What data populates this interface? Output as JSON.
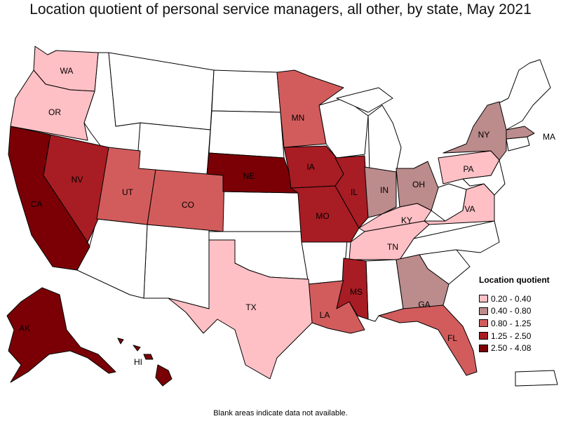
{
  "title": "Location quotient of personal service managers, all other, by state, May 2021",
  "footnote": "Blank areas indicate data not available.",
  "legend": {
    "title": "Location quotient",
    "items": [
      {
        "label": "0.20 - 0.40",
        "color": "#ffc0c5"
      },
      {
        "label": "0.40 - 0.80",
        "color": "#bc8b8c"
      },
      {
        "label": "0.80 - 1.25",
        "color": "#d25c5c"
      },
      {
        "label": "1.25 - 2.50",
        "color": "#a81c23"
      },
      {
        "label": "2.50 - 4.08",
        "color": "#7a0006"
      }
    ]
  },
  "states": [
    {
      "abbr": "WA",
      "class": 0
    },
    {
      "abbr": "OR",
      "class": 0
    },
    {
      "abbr": "CA",
      "class": 4
    },
    {
      "abbr": "NV",
      "class": 3
    },
    {
      "abbr": "UT",
      "class": 2
    },
    {
      "abbr": "CO",
      "class": 2
    },
    {
      "abbr": "NE",
      "class": 4
    },
    {
      "abbr": "MN",
      "class": 2
    },
    {
      "abbr": "IA",
      "class": 3
    },
    {
      "abbr": "MO",
      "class": 3
    },
    {
      "abbr": "IL",
      "class": 3
    },
    {
      "abbr": "IN",
      "class": 1
    },
    {
      "abbr": "OH",
      "class": 1
    },
    {
      "abbr": "KY",
      "class": 0
    },
    {
      "abbr": "TN",
      "class": 0
    },
    {
      "abbr": "MS",
      "class": 3
    },
    {
      "abbr": "LA",
      "class": 2
    },
    {
      "abbr": "TX",
      "class": 0
    },
    {
      "abbr": "GA",
      "class": 1
    },
    {
      "abbr": "FL",
      "class": 2
    },
    {
      "abbr": "VA",
      "class": 0
    },
    {
      "abbr": "PA",
      "class": 0
    },
    {
      "abbr": "NY",
      "class": 1
    },
    {
      "abbr": "MA",
      "class": 1
    },
    {
      "abbr": "AK",
      "class": 4
    },
    {
      "abbr": "HI",
      "class": 4
    }
  ]
}
